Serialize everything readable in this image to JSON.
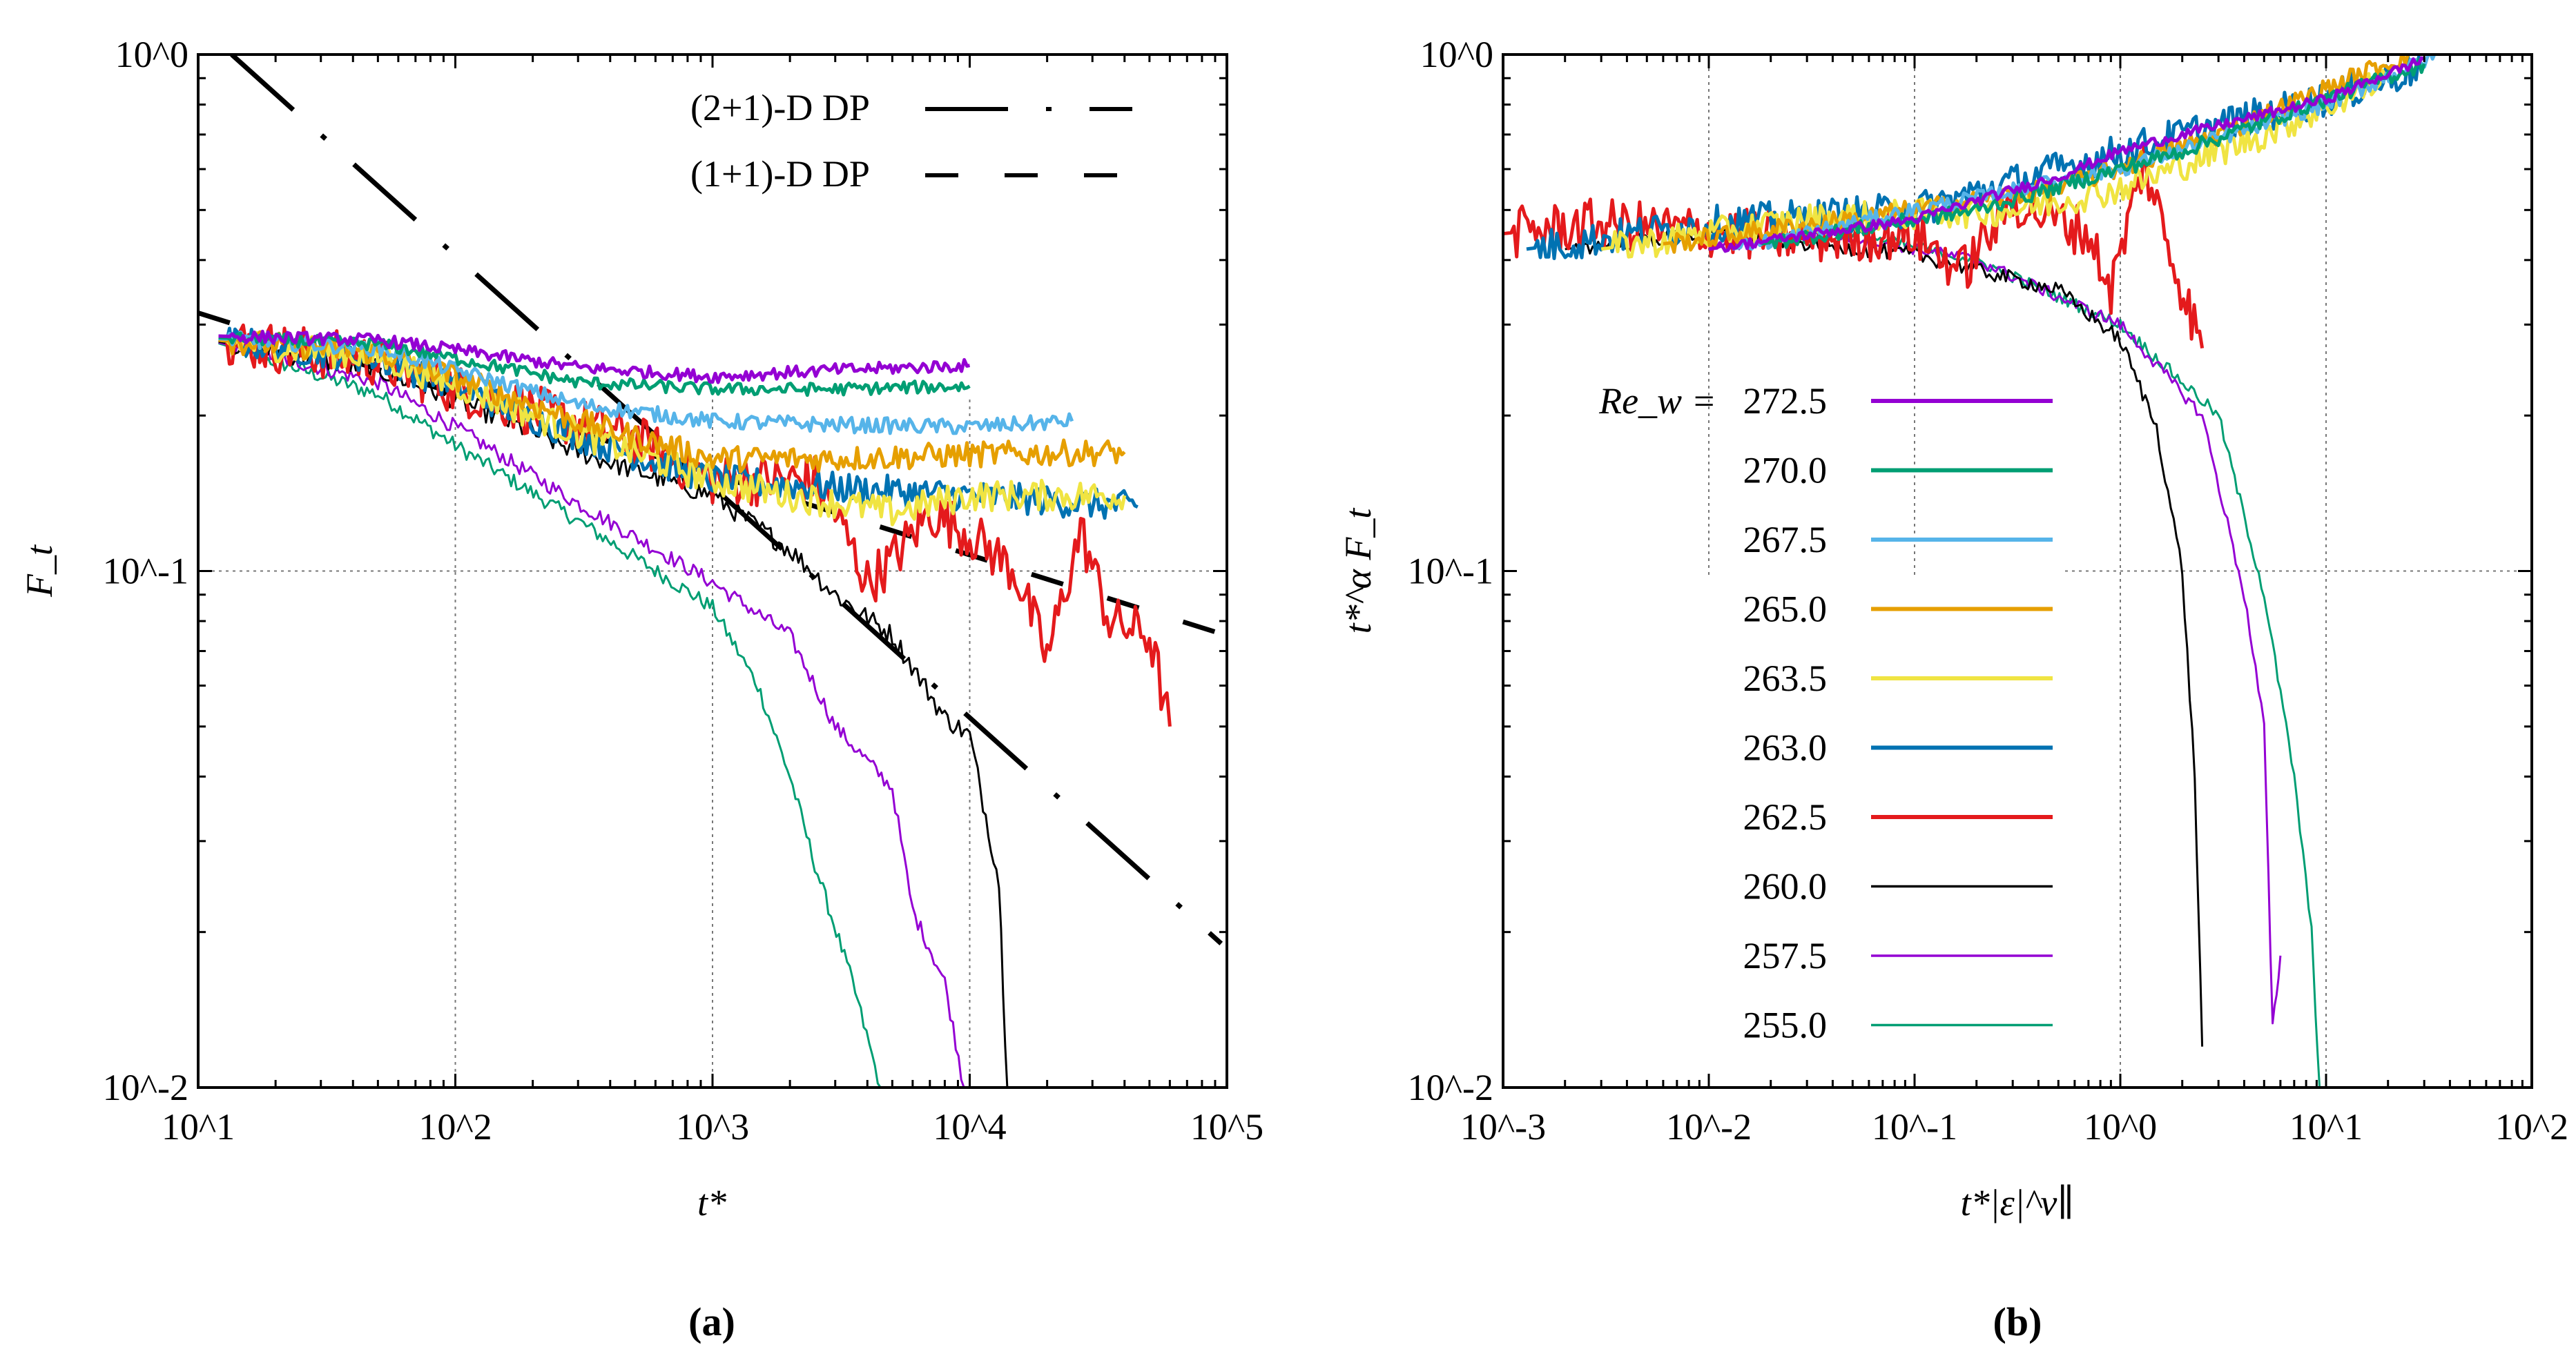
{
  "chart_data": [
    {
      "id": "a",
      "type": "line",
      "caption": "(a)",
      "xscale": "log",
      "yscale": "log",
      "xlabel": "t*",
      "ylabel": "F_t",
      "xlim": [
        10,
        100000
      ],
      "ylim": [
        0.01,
        1
      ],
      "x_tick_labels": [
        "10^1",
        "10^2",
        "10^3",
        "10^4",
        "10^5"
      ],
      "y_tick_labels": [
        "10^-2",
        "10^-1",
        "10^0"
      ],
      "grid": "dotted at x=10^3,10^4 (upper part), y=10^-1",
      "legend_position": "top-right",
      "reference_lines": [
        {
          "name": "(2+1)-D DP",
          "style": "dash-dot",
          "points": [
            [
              13.5,
              1.0
            ],
            [
              95000,
              0.019
            ]
          ]
        },
        {
          "name": "(1+1)-D DP",
          "style": "dashed",
          "points": [
            [
              10,
              0.316
            ],
            [
              100000,
              0.075
            ]
          ]
        }
      ],
      "series": [
        {
          "name": "272.5",
          "color": "#9400D3",
          "weight": "thick",
          "noise": 0.012,
          "points": [
            [
              12,
              0.285
            ],
            [
              50,
              0.28
            ],
            [
              100,
              0.268
            ],
            [
              300,
              0.248
            ],
            [
              1000,
              0.238
            ],
            [
              3000,
              0.245
            ],
            [
              10000,
              0.25
            ]
          ]
        },
        {
          "name": "270.0",
          "color": "#009E73",
          "weight": "thick",
          "noise": 0.012,
          "points": [
            [
              12,
              0.283
            ],
            [
              50,
              0.275
            ],
            [
              100,
              0.258
            ],
            [
              300,
              0.232
            ],
            [
              1000,
              0.225
            ],
            [
              3000,
              0.225
            ],
            [
              10000,
              0.228
            ]
          ]
        },
        {
          "name": "267.5",
          "color": "#56B4E9",
          "weight": "thick",
          "noise": 0.015,
          "points": [
            [
              12,
              0.282
            ],
            [
              50,
              0.27
            ],
            [
              100,
              0.245
            ],
            [
              300,
              0.21
            ],
            [
              1000,
              0.195
            ],
            [
              3000,
              0.192
            ],
            [
              10000,
              0.19
            ],
            [
              25000,
              0.195
            ]
          ]
        },
        {
          "name": "265.0",
          "color": "#E69F00",
          "weight": "thick",
          "noise": 0.025,
          "points": [
            [
              12,
              0.28
            ],
            [
              50,
              0.265
            ],
            [
              100,
              0.237
            ],
            [
              300,
              0.195
            ],
            [
              1000,
              0.165
            ],
            [
              3000,
              0.165
            ],
            [
              10000,
              0.168
            ],
            [
              40000,
              0.17
            ]
          ]
        },
        {
          "name": "263.5",
          "color": "#F0E442",
          "weight": "thick",
          "noise": 0.03,
          "points": [
            [
              12,
              0.28
            ],
            [
              50,
              0.26
            ],
            [
              100,
              0.23
            ],
            [
              300,
              0.185
            ],
            [
              1000,
              0.15
            ],
            [
              2000,
              0.14
            ],
            [
              5000,
              0.13
            ],
            [
              10000,
              0.14
            ],
            [
              40000,
              0.14
            ]
          ]
        },
        {
          "name": "263.0",
          "color": "#0072B2",
          "weight": "thick",
          "noise": 0.03,
          "points": [
            [
              12,
              0.28
            ],
            [
              50,
              0.258
            ],
            [
              100,
              0.228
            ],
            [
              300,
              0.182
            ],
            [
              1000,
              0.15
            ],
            [
              3000,
              0.145
            ],
            [
              10000,
              0.14
            ],
            [
              45000,
              0.133
            ]
          ]
        },
        {
          "name": "262.5",
          "color": "#E41A1C",
          "weight": "thick",
          "noise": 0.05,
          "points": [
            [
              12,
              0.28
            ],
            [
              50,
              0.255
            ],
            [
              100,
              0.225
            ],
            [
              500,
              0.18
            ],
            [
              1000,
              0.15
            ],
            [
              2500,
              0.15
            ],
            [
              3000,
              0.13
            ],
            [
              4000,
              0.095
            ],
            [
              5000,
              0.105
            ],
            [
              7000,
              0.13
            ],
            [
              10000,
              0.118
            ],
            [
              15000,
              0.1
            ],
            [
              20000,
              0.068
            ],
            [
              27000,
              0.12
            ],
            [
              35000,
              0.08
            ],
            [
              50000,
              0.075
            ],
            [
              60000,
              0.05
            ]
          ]
        },
        {
          "name": "260.0",
          "color": "#000000",
          "weight": "thin",
          "noise": 0.02,
          "points": [
            [
              12,
              0.278
            ],
            [
              50,
              0.245
            ],
            [
              100,
              0.215
            ],
            [
              300,
              0.17
            ],
            [
              1000,
              0.14
            ],
            [
              2000,
              0.11
            ],
            [
              3000,
              0.09
            ],
            [
              5000,
              0.075
            ],
            [
              8000,
              0.052
            ],
            [
              10000,
              0.048
            ],
            [
              13000,
              0.025
            ],
            [
              14000,
              0.01
            ]
          ]
        },
        {
          "name": "257.5",
          "color": "#9400D3",
          "weight": "thin",
          "noise": 0.015,
          "points": [
            [
              12,
              0.277
            ],
            [
              50,
              0.232
            ],
            [
              100,
              0.19
            ],
            [
              300,
              0.135
            ],
            [
              1000,
              0.095
            ],
            [
              2000,
              0.075
            ],
            [
              3000,
              0.05
            ],
            [
              5000,
              0.038
            ],
            [
              6000,
              0.022
            ],
            [
              8000,
              0.016
            ],
            [
              9500,
              0.01
            ]
          ]
        },
        {
          "name": "255.0",
          "color": "#009E73",
          "weight": "thin",
          "noise": 0.015,
          "points": [
            [
              12,
              0.276
            ],
            [
              50,
              0.22
            ],
            [
              100,
              0.175
            ],
            [
              300,
              0.125
            ],
            [
              1000,
              0.085
            ],
            [
              1500,
              0.06
            ],
            [
              2000,
              0.04
            ],
            [
              2500,
              0.027
            ],
            [
              3500,
              0.016
            ],
            [
              4500,
              0.01
            ]
          ]
        }
      ]
    },
    {
      "id": "b",
      "type": "line",
      "caption": "(b)",
      "xscale": "log",
      "yscale": "log",
      "xlabel": "t*|ε|^ν∥",
      "ylabel": "t*^α F_t",
      "xlim": [
        0.001,
        100
      ],
      "ylim": [
        0.01,
        1
      ],
      "x_tick_labels": [
        "10^-3",
        "10^-2",
        "10^-1",
        "10^0",
        "10^1",
        "10^2"
      ],
      "y_tick_labels": [
        "10^-2",
        "10^-1",
        "10^0"
      ],
      "grid": "dotted at x=10^-2,10^-1,10^0,10^1, y=10^-1",
      "legend_title": "Re_w =",
      "legend_position": "center-left",
      "series": [
        {
          "name": "272.5",
          "color": "#9400D3",
          "weight": "thick",
          "noise": 0.01,
          "points": [
            [
              0.01,
              0.42
            ],
            [
              0.1,
              0.48
            ],
            [
              0.5,
              0.58
            ],
            [
              1,
              0.65
            ],
            [
              2,
              0.7
            ],
            [
              10,
              0.82
            ],
            [
              30,
              0.98
            ]
          ]
        },
        {
          "name": "270.0",
          "color": "#009E73",
          "weight": "thick",
          "noise": 0.015,
          "points": [
            [
              0.018,
              0.43
            ],
            [
              0.2,
              0.5
            ],
            [
              2,
              0.65
            ],
            [
              10,
              0.82
            ],
            [
              30,
              0.96
            ]
          ]
        },
        {
          "name": "267.5",
          "color": "#56B4E9",
          "weight": "thick",
          "noise": 0.015,
          "points": [
            [
              0.013,
              0.42
            ],
            [
              0.1,
              0.5
            ],
            [
              1,
              0.6
            ],
            [
              10,
              0.8
            ],
            [
              35,
              1.0
            ]
          ]
        },
        {
          "name": "265.0",
          "color": "#E69F00",
          "weight": "thick",
          "noise": 0.02,
          "points": [
            [
              0.006,
              0.43
            ],
            [
              0.05,
              0.48
            ],
            [
              0.5,
              0.55
            ],
            [
              3,
              0.7
            ],
            [
              25,
              1.0
            ]
          ]
        },
        {
          "name": "263.5",
          "color": "#F0E442",
          "weight": "thick",
          "noise": 0.03,
          "points": [
            [
              0.003,
              0.42
            ],
            [
              0.03,
              0.48
            ],
            [
              0.3,
              0.5
            ],
            [
              1,
              0.55
            ],
            [
              5,
              0.7
            ],
            [
              20,
              0.9
            ]
          ]
        },
        {
          "name": "263.0",
          "color": "#0072B2",
          "weight": "thick",
          "noise": 0.035,
          "points": [
            [
              0.0013,
              0.42
            ],
            [
              0.01,
              0.47
            ],
            [
              0.1,
              0.5
            ],
            [
              0.5,
              0.6
            ],
            [
              2,
              0.7
            ],
            [
              10,
              0.82
            ],
            [
              30,
              0.95
            ]
          ]
        },
        {
          "name": "262.5",
          "color": "#E41A1C",
          "weight": "thick",
          "noise": 0.05,
          "points": [
            [
              0.001,
              0.45
            ],
            [
              0.003,
              0.47
            ],
            [
              0.03,
              0.44
            ],
            [
              0.1,
              0.45
            ],
            [
              0.17,
              0.38
            ],
            [
              0.3,
              0.52
            ],
            [
              0.7,
              0.45
            ],
            [
              0.9,
              0.35
            ],
            [
              1.3,
              0.62
            ],
            [
              1.8,
              0.4
            ],
            [
              2.5,
              0.27
            ]
          ]
        },
        {
          "name": "260.0",
          "color": "#000000",
          "weight": "thin",
          "noise": 0.015,
          "points": [
            [
              0.002,
              0.42
            ],
            [
              0.01,
              0.45
            ],
            [
              0.1,
              0.41
            ],
            [
              0.5,
              0.35
            ],
            [
              1,
              0.28
            ],
            [
              1.5,
              0.19
            ],
            [
              2,
              0.1
            ],
            [
              2.3,
              0.04
            ],
            [
              2.5,
              0.012
            ]
          ]
        },
        {
          "name": "257.5",
          "color": "#9400D3",
          "weight": "thin",
          "noise": 0.012,
          "points": [
            [
              0.01,
              0.42
            ],
            [
              0.04,
              0.45
            ],
            [
              0.2,
              0.4
            ],
            [
              1,
              0.3
            ],
            [
              2.5,
              0.2
            ],
            [
              4,
              0.09
            ],
            [
              5,
              0.05
            ],
            [
              5.5,
              0.013
            ],
            [
              6,
              0.018
            ]
          ]
        },
        {
          "name": "255.0",
          "color": "#009E73",
          "weight": "thin",
          "noise": 0.012,
          "points": [
            [
              0.025,
              0.43
            ],
            [
              0.05,
              0.45
            ],
            [
              0.2,
              0.4
            ],
            [
              1,
              0.3
            ],
            [
              3,
              0.2
            ],
            [
              5,
              0.09
            ],
            [
              7,
              0.04
            ],
            [
              8.5,
              0.02
            ],
            [
              9.3,
              0.01
            ]
          ]
        }
      ]
    }
  ]
}
